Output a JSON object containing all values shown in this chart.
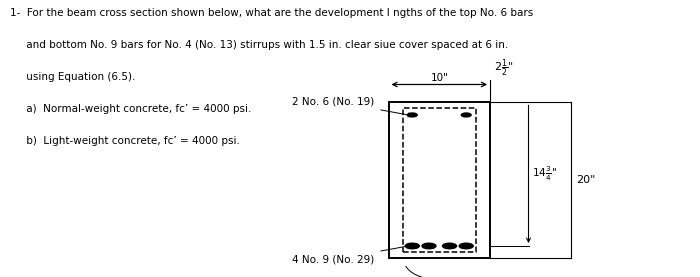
{
  "bg_color": "#ffffff",
  "text_color": "#000000",
  "font_size": 7.5,
  "line1": "1-  For the beam cross section shown below, what are the development l ngths of the top No. 6 bars",
  "line2": "     and bottom No. 9 bars for No. 4 (No. 13) stirrups with 1.5 in. clear siue cover spaced at 6 in.",
  "line3": "     using Equation (6.5).",
  "line4": "     a)  Normal-weight concrete, fc’ = 4000 psi.",
  "line5": "     b)  Light-weight concrete, fc’ = 4000 psi.",
  "bx": 0.555,
  "by": 0.07,
  "bw": 0.145,
  "bh": 0.56,
  "ins": 0.02
}
